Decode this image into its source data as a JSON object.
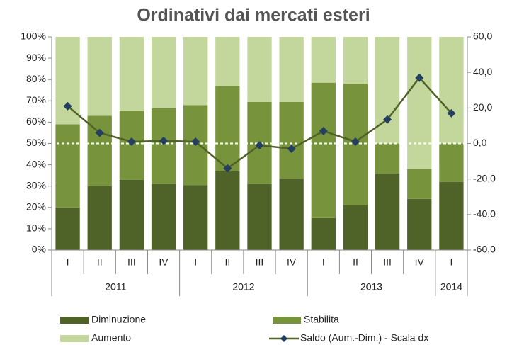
{
  "chart_data": {
    "type": "bar",
    "stacked": "percent",
    "title": "Ordinativi dai mercati esteri",
    "categories": [
      "I",
      "II",
      "III",
      "IV",
      "I",
      "II",
      "III",
      "IV",
      "I",
      "II",
      "III",
      "IV",
      "I"
    ],
    "year_labels": [
      "2011",
      null,
      null,
      null,
      "2012",
      null,
      null,
      null,
      "2013",
      null,
      null,
      null,
      "2014"
    ],
    "series": [
      {
        "name": "Diminuzione",
        "color": "#4f6228",
        "values": [
          20,
          30,
          33,
          31,
          30.5,
          37,
          31,
          33.5,
          15,
          21,
          36,
          24,
          32
        ]
      },
      {
        "name": "Stabilita",
        "color": "#77933c",
        "values": [
          39,
          33,
          32.5,
          35.5,
          37.5,
          40,
          38.5,
          36,
          63.5,
          57,
          14,
          14,
          18
        ]
      },
      {
        "name": "Aumento",
        "color": "#c3d69b",
        "values": [
          41,
          37,
          34.5,
          33.5,
          32,
          23,
          30.5,
          30.5,
          21.5,
          22,
          50,
          62,
          50
        ]
      },
      {
        "name": "Saldo (Aum.-Dim.) - Scala dx",
        "type": "line",
        "axis": "y2",
        "color": "#4f6228",
        "marker_color": "#243f60",
        "values": [
          21,
          6,
          1,
          1.5,
          1,
          -14,
          -1,
          -3,
          7,
          1,
          13.5,
          37,
          17
        ]
      }
    ],
    "ylim": [
      0,
      100
    ],
    "yticks": [
      {
        "value": 0,
        "label": "0%"
      },
      {
        "value": 10,
        "label": "10%"
      },
      {
        "value": 20,
        "label": "20%"
      },
      {
        "value": 30,
        "label": "30%"
      },
      {
        "value": 40,
        "label": "40%"
      },
      {
        "value": 50,
        "label": "50%"
      },
      {
        "value": 60,
        "label": "60%"
      },
      {
        "value": 70,
        "label": "70%"
      },
      {
        "value": 80,
        "label": "80%"
      },
      {
        "value": 90,
        "label": "90%"
      },
      {
        "value": 100,
        "label": "100%"
      }
    ],
    "y2lim": [
      -60,
      60
    ],
    "y2ticks": [
      {
        "value": -60,
        "label": "-60,0"
      },
      {
        "value": -40,
        "label": "-40,0"
      },
      {
        "value": -20,
        "label": "-20,0"
      },
      {
        "value": 0,
        "label": "0,0"
      },
      {
        "value": 20,
        "label": "20,0"
      },
      {
        "value": 40,
        "label": "40,0"
      },
      {
        "value": 60,
        "label": "60,0"
      }
    ],
    "legend": "bottom"
  }
}
